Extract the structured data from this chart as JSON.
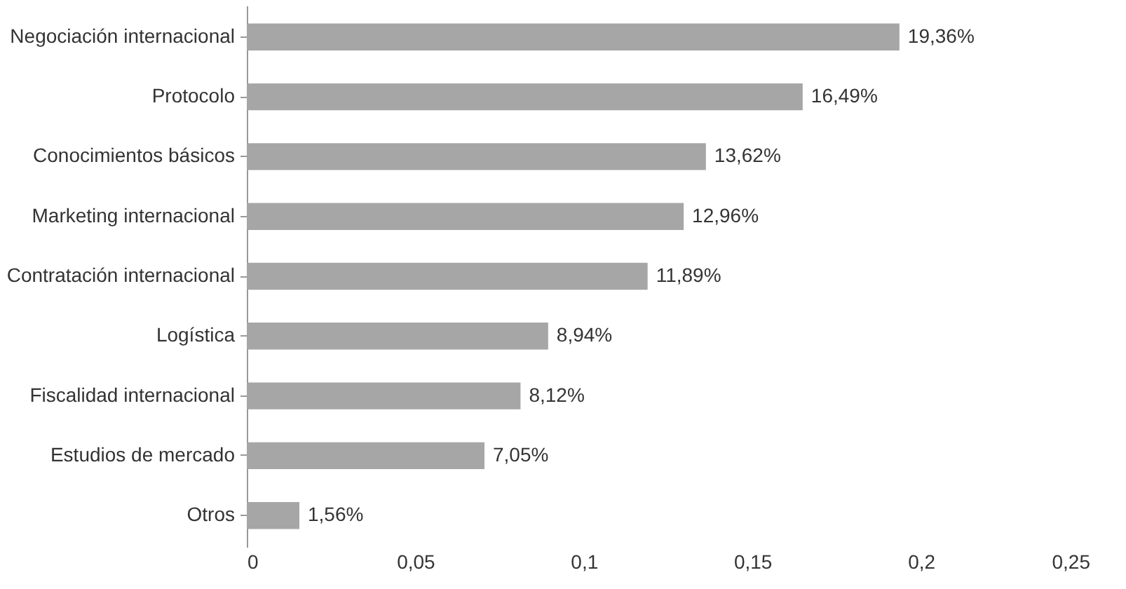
{
  "chart_data": {
    "type": "bar",
    "orientation": "horizontal",
    "categories": [
      "Negociación internacional",
      "Protocolo",
      "Conocimientos básicos",
      "Marketing internacional",
      "Contratación internacional",
      "Logística",
      "Fiscalidad internacional",
      "Estudios de mercado",
      "Otros"
    ],
    "values": [
      0.1936,
      0.1649,
      0.1362,
      0.1296,
      0.1189,
      0.0894,
      0.0812,
      0.0705,
      0.0156
    ],
    "value_labels": [
      "19,36%",
      "16,49%",
      "13,62%",
      "12,96%",
      "11,89%",
      "8,94%",
      "8,12%",
      "7,05%",
      "1,56%"
    ],
    "color": "#a6a6a6",
    "xlim": [
      0,
      0.25
    ],
    "xticks": [
      0,
      {
        "value": 0.05,
        "label": "0,05"
      },
      {
        "value": 0.1,
        "label": "0,1"
      },
      {
        "value": 0.15,
        "label": "0,15"
      },
      {
        "value": 0.2,
        "label": "0,2"
      },
      {
        "value": 0.25,
        "label": "0,25"
      }
    ],
    "grid": false
  }
}
